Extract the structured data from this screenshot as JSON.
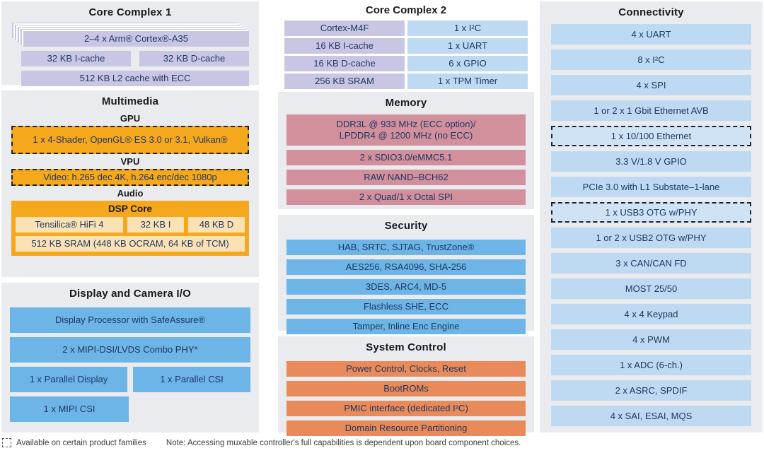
{
  "core_complex_1": {
    "title": "Core Complex 1",
    "cpu": "2–4 x Arm® Cortex®-A35",
    "icache": "32 KB I-cache",
    "dcache": "32 KB D-cache",
    "l2": "512 KB L2 cache with ECC"
  },
  "multimedia": {
    "title": "Multimedia",
    "gpu": {
      "label": "GPU",
      "text": "1 x 4-Shader, OpenGL® ES 3.0 or 3.1, Vulkan®",
      "dashed": true
    },
    "vpu": {
      "label": "VPU",
      "text": "Video: h.265 dec 4K, h.264 enc/dec 1080p",
      "dashed": true
    },
    "audio": {
      "label": "Audio",
      "dsp_title": "DSP Core",
      "cells": [
        "Tensilica® HiFi 4",
        "32 KB I",
        "48 KB D"
      ],
      "sram": "512 KB SRAM (448 KB OCRAM, 64 KB of TCM)"
    }
  },
  "display_camera": {
    "title": "Display and Camera I/O",
    "display_processor": "Display Processor with SafeAssure®",
    "mipi_dsi": "2 x MIPI-DSI/LVDS Combo PHY*",
    "parallel_display": "1 x Parallel Display",
    "parallel_csi": "1 x Parallel CSI",
    "mipi_csi": "1 x MIPI CSI"
  },
  "core_complex_2": {
    "title": "Core Complex 2",
    "rows": [
      {
        "left": "Cortex-M4F",
        "right": "1 x I²C"
      },
      {
        "left": "16 KB I-cache",
        "right": "1 x UART"
      },
      {
        "left": "16 KB D-cache",
        "right": "6 x GPIO"
      },
      {
        "left": "256 KB SRAM",
        "right": "1 x TPM Timer"
      }
    ]
  },
  "memory": {
    "title": "Memory",
    "ddr": "DDR3L @ 933 MHz (ECC option)/\nLPDDR4 @ 1200 MHz (no ECC)",
    "rows": [
      "2 x SDIO3.0/eMMC5.1",
      "RAW NAND–BCH62",
      "2 x Quad/1 x Octal SPI"
    ]
  },
  "security": {
    "title": "Security",
    "rows": [
      "HAB, SRTC, SJTAG, TrustZone®",
      "AES256, RSA4096, SHA-256",
      "3DES, ARC4, MD-5",
      "Flashless SHE, ECC",
      "Tamper, Inline Enc Engine"
    ]
  },
  "system_control": {
    "title": "System Control",
    "rows": [
      "Power Control, Clocks, Reset",
      "BootROMs",
      "PMIC interface (dedicated I²C)",
      "Domain Resource Partitioning"
    ]
  },
  "connectivity": {
    "title": "Connectivity",
    "rows": [
      {
        "label": "4 x UART",
        "dashed": false
      },
      {
        "label": "8 x I²C",
        "dashed": false
      },
      {
        "label": "4 x SPI",
        "dashed": false
      },
      {
        "label": "1 or 2 x 1 Gbit Ethernet AVB",
        "dashed": false
      },
      {
        "label": "1 x 10/100 Ethernet",
        "dashed": true
      },
      {
        "label": "3.3 V/1.8 V GPIO",
        "dashed": false
      },
      {
        "label": "PCIe 3.0 with L1 Substate–1-lane",
        "dashed": false
      },
      {
        "label": "1 x USB3 OTG w/PHY",
        "dashed": true
      },
      {
        "label": "1 or 2 x USB2 OTG w/PHY",
        "dashed": false
      },
      {
        "label": "3 x CAN/CAN FD",
        "dashed": false
      },
      {
        "label": "MOST 25/50",
        "dashed": false
      },
      {
        "label": "4 x 4 Keypad",
        "dashed": false
      },
      {
        "label": "4 x PWM",
        "dashed": false
      },
      {
        "label": "1 x ADC (6-ch.)",
        "dashed": false
      },
      {
        "label": "2 x ASRC, SPDIF",
        "dashed": false
      },
      {
        "label": "4 x SAI, ESAI, MQS",
        "dashed": false
      }
    ]
  },
  "legend": {
    "dashed_meaning": "Available on certain product families",
    "note": "Note: Accessing muxable controller's full capabilities is dependent upon board component choices."
  },
  "colors": {
    "panel_bg": "#e9ebee",
    "purple": "#c9c6e3",
    "light_blue": "#bedaf2",
    "light_blue_dashed": "#cfe3f5",
    "medium_blue": "#6db5e6",
    "rose": "#d28f9c",
    "coral": "#e88a5a",
    "amber": "#f6a81d",
    "amber_pale": "#fbe2b5",
    "box_text": "#1f3864"
  }
}
